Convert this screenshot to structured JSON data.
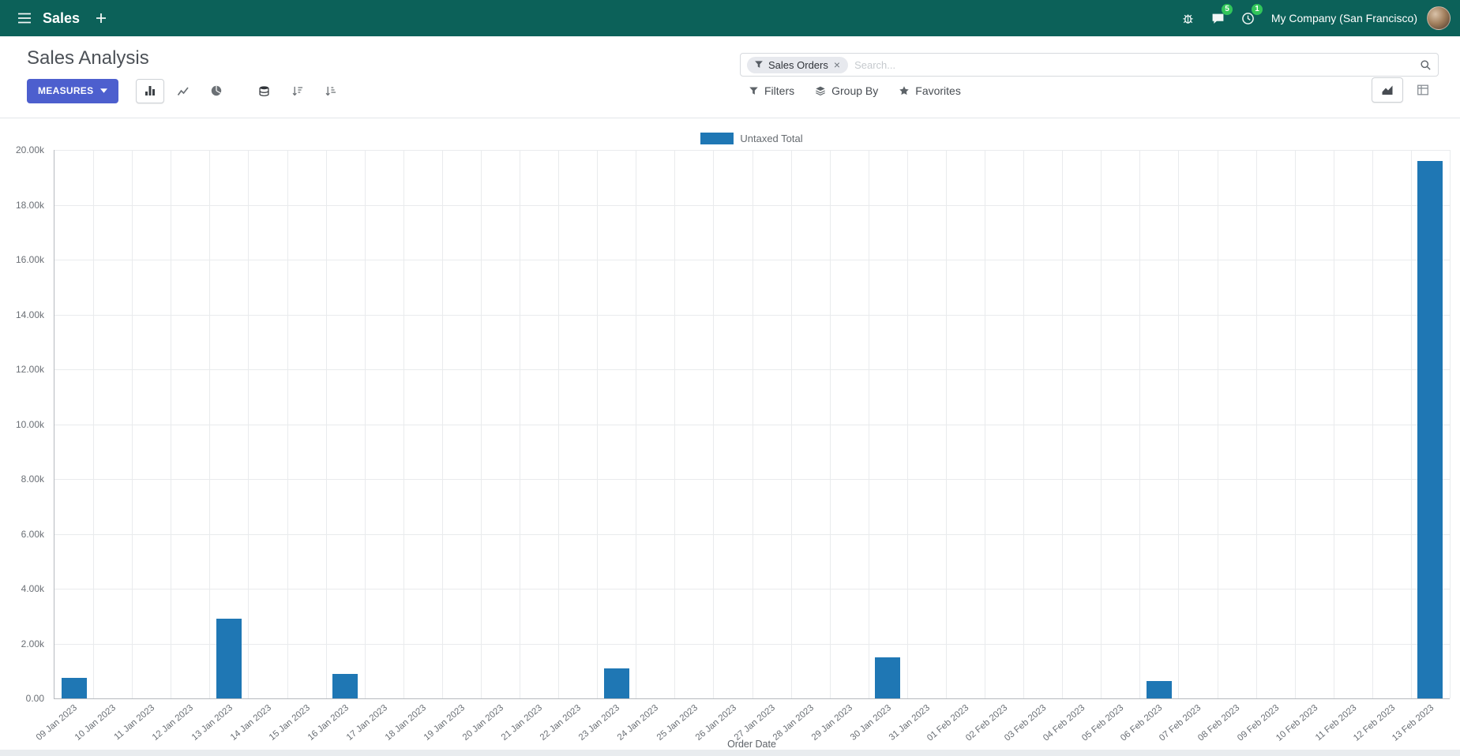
{
  "colors": {
    "navbar_bg": "#0c6159",
    "primary_button": "#4d5fce",
    "badge_green": "#32c65a",
    "bar_series": "#1f77b4"
  },
  "navbar": {
    "app_name": "Sales",
    "message_count": "5",
    "activity_count": "1",
    "company": "My Company (San Francisco)"
  },
  "control_panel": {
    "title": "Sales Analysis",
    "measures_label": "MEASURES",
    "search": {
      "facet_label": "Sales Orders",
      "remove_label": "×",
      "placeholder": "Search..."
    },
    "filters_label": "Filters",
    "group_by_label": "Group By",
    "favorites_label": "Favorites"
  },
  "chart_data": {
    "type": "bar",
    "title": "",
    "legend": [
      "Untaxed Total"
    ],
    "legend_position": "top",
    "color": "#1f77b4",
    "grid": true,
    "xlabel": "Order Date",
    "ylabel": "",
    "ylim": [
      0,
      20000
    ],
    "ytick_step": 2000,
    "categories": [
      "09 Jan 2023",
      "10 Jan 2023",
      "11 Jan 2023",
      "12 Jan 2023",
      "13 Jan 2023",
      "14 Jan 2023",
      "15 Jan 2023",
      "16 Jan 2023",
      "17 Jan 2023",
      "18 Jan 2023",
      "19 Jan 2023",
      "20 Jan 2023",
      "21 Jan 2023",
      "22 Jan 2023",
      "23 Jan 2023",
      "24 Jan 2023",
      "25 Jan 2023",
      "26 Jan 2023",
      "27 Jan 2023",
      "28 Jan 2023",
      "29 Jan 2023",
      "30 Jan 2023",
      "31 Jan 2023",
      "01 Feb 2023",
      "02 Feb 2023",
      "03 Feb 2023",
      "04 Feb 2023",
      "05 Feb 2023",
      "06 Feb 2023",
      "07 Feb 2023",
      "08 Feb 2023",
      "09 Feb 2023",
      "10 Feb 2023",
      "11 Feb 2023",
      "12 Feb 2023",
      "13 Feb 2023"
    ],
    "values": [
      750,
      0,
      0,
      0,
      2900,
      0,
      0,
      900,
      0,
      0,
      0,
      0,
      0,
      0,
      1100,
      0,
      0,
      0,
      0,
      0,
      0,
      1500,
      0,
      0,
      0,
      0,
      0,
      0,
      620,
      0,
      0,
      0,
      0,
      0,
      0,
      19600
    ]
  }
}
